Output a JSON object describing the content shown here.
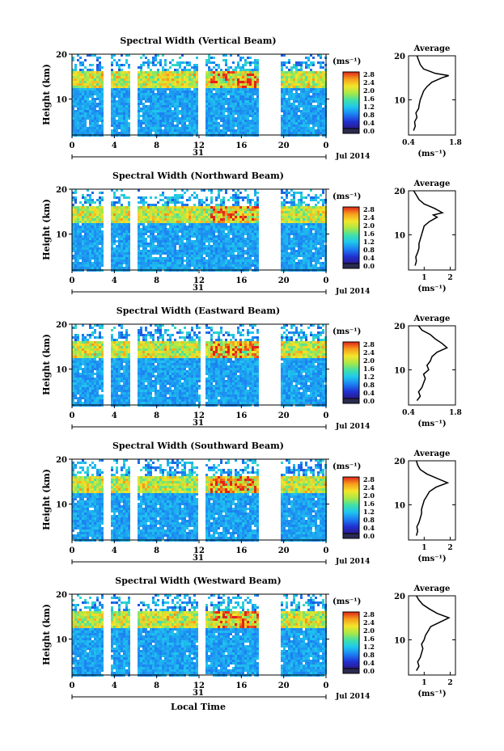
{
  "figure": {
    "xlabel": "Local Time",
    "date_label": "Jul 2014",
    "day_label": "31",
    "ylabel": "Height (km)",
    "colorbar_unit": "(ms⁻¹)",
    "average_title": "Average",
    "average_unit": "(ms⁻¹)"
  },
  "chart_data": [
    {
      "type": "heatmap",
      "title": "Spectral Width (Vertical Beam)",
      "xlabel": "Local Time",
      "ylabel": "Height (km)",
      "x_ticks": [
        "0",
        "4",
        "8",
        "12",
        "16",
        "20",
        "0"
      ],
      "y_ticks": [
        "10",
        "20"
      ],
      "xlim": [
        0,
        24
      ],
      "ylim": [
        2,
        20
      ],
      "data_gaps_hours": [
        [
          2.8,
          3.6
        ],
        [
          5.4,
          6.0
        ],
        [
          11.8,
          12.6
        ],
        [
          17.6,
          19.6
        ]
      ],
      "colorbar": {
        "label": "(ms⁻¹)",
        "ticks": [
          "0.0",
          "0.4",
          "0.8",
          "1.2",
          "1.6",
          "2.0",
          "2.4",
          "2.8"
        ],
        "range": [
          0,
          2.8
        ]
      },
      "average_profile": {
        "title": "Average",
        "xlabel": "(ms⁻¹)",
        "x_ticks": [
          "0.4",
          "1.8"
        ],
        "xlim": [
          0.4,
          1.8
        ],
        "height_km": [
          3,
          4,
          5,
          6,
          7,
          8,
          9,
          10,
          11,
          12,
          13,
          14,
          15,
          15.5,
          16,
          17,
          18,
          19,
          20
        ],
        "value": [
          0.55,
          0.6,
          0.58,
          0.65,
          0.62,
          0.7,
          0.72,
          0.75,
          0.8,
          0.85,
          0.95,
          1.1,
          1.4,
          1.6,
          1.2,
          0.85,
          0.75,
          0.7,
          0.65
        ]
      }
    },
    {
      "type": "heatmap",
      "title": "Spectral Width (Northward Beam)",
      "xlabel": "Local Time",
      "ylabel": "Height (km)",
      "x_ticks": [
        "0",
        "4",
        "8",
        "12",
        "16",
        "20",
        "0"
      ],
      "y_ticks": [
        "10",
        "20"
      ],
      "xlim": [
        0,
        24
      ],
      "ylim": [
        2,
        20
      ],
      "data_gaps_hours": [
        [
          2.8,
          3.6
        ],
        [
          5.4,
          6.0
        ],
        [
          17.6,
          19.6
        ]
      ],
      "colorbar": {
        "label": "(ms⁻¹)",
        "ticks": [
          "0.0",
          "0.4",
          "0.8",
          "1.2",
          "1.6",
          "2.0",
          "2.4",
          "2.8"
        ],
        "range": [
          0,
          2.8
        ]
      },
      "average_profile": {
        "title": "Average",
        "xlabel": "(ms⁻¹)",
        "x_ticks": [
          "1",
          "2"
        ],
        "xlim": [
          0.4,
          2.2
        ],
        "height_km": [
          3,
          4,
          5,
          6,
          7,
          8,
          9,
          10,
          11,
          12,
          13,
          14,
          14.5,
          15,
          16,
          17,
          18,
          19,
          20
        ],
        "value": [
          0.65,
          0.7,
          0.68,
          0.75,
          0.8,
          0.8,
          0.85,
          0.9,
          0.95,
          1.0,
          1.2,
          1.5,
          1.35,
          1.7,
          1.4,
          1.0,
          0.8,
          0.7,
          0.6
        ]
      }
    },
    {
      "type": "heatmap",
      "title": "Spectral Width (Eastward Beam)",
      "xlabel": "Local Time",
      "ylabel": "Height (km)",
      "x_ticks": [
        "0",
        "4",
        "8",
        "12",
        "16",
        "20",
        "0"
      ],
      "y_ticks": [
        "10",
        "20"
      ],
      "xlim": [
        0,
        24
      ],
      "ylim": [
        2,
        20
      ],
      "data_gaps_hours": [
        [
          2.8,
          3.6
        ],
        [
          5.4,
          6.0
        ],
        [
          12.0,
          12.6
        ],
        [
          17.6,
          19.6
        ]
      ],
      "colorbar": {
        "label": "(ms⁻¹)",
        "ticks": [
          "0.0",
          "0.4",
          "0.8",
          "1.2",
          "1.6",
          "2.0",
          "2.4",
          "2.8"
        ],
        "range": [
          0,
          2.8
        ]
      },
      "average_profile": {
        "title": "Average",
        "xlabel": "(ms⁻¹)",
        "x_ticks": [
          "0.4",
          "1.8"
        ],
        "xlim": [
          0.4,
          1.8
        ],
        "height_km": [
          3,
          4,
          5,
          6,
          7,
          8,
          9,
          10,
          11,
          12,
          13,
          14,
          15,
          16,
          17,
          18,
          19,
          20
        ],
        "value": [
          0.65,
          0.75,
          0.7,
          0.8,
          0.85,
          0.9,
          0.85,
          1.0,
          0.95,
          1.05,
          1.1,
          1.25,
          1.55,
          1.4,
          1.2,
          1.05,
          0.8,
          0.7
        ]
      }
    },
    {
      "type": "heatmap",
      "title": "Spectral Width (Southward Beam)",
      "xlabel": "Local Time",
      "ylabel": "Height (km)",
      "x_ticks": [
        "0",
        "4",
        "8",
        "12",
        "16",
        "20",
        "0"
      ],
      "y_ticks": [
        "10",
        "20"
      ],
      "xlim": [
        0,
        24
      ],
      "ylim": [
        2,
        20
      ],
      "data_gaps_hours": [
        [
          2.8,
          3.6
        ],
        [
          5.4,
          6.0
        ],
        [
          11.8,
          12.6
        ],
        [
          17.6,
          19.6
        ]
      ],
      "colorbar": {
        "label": "(ms⁻¹)",
        "ticks": [
          "0.0",
          "0.4",
          "0.8",
          "1.2",
          "1.6",
          "2.0",
          "2.4",
          "2.8"
        ],
        "range": [
          0,
          2.8
        ]
      },
      "average_profile": {
        "title": "Average",
        "xlabel": "(ms⁻¹)",
        "x_ticks": [
          "1",
          "2"
        ],
        "xlim": [
          0.4,
          2.2
        ],
        "height_km": [
          3,
          4,
          5,
          6,
          7,
          8,
          9,
          10,
          11,
          12,
          13,
          14,
          15,
          16,
          17,
          18,
          19,
          20
        ],
        "value": [
          0.7,
          0.75,
          0.72,
          0.8,
          0.85,
          0.9,
          0.9,
          0.95,
          1.0,
          1.1,
          1.2,
          1.45,
          1.9,
          1.5,
          1.1,
          0.85,
          0.75,
          0.7
        ]
      }
    },
    {
      "type": "heatmap",
      "title": "Spectral Width (Westward Beam)",
      "xlabel": "Local Time",
      "ylabel": "Height (km)",
      "x_ticks": [
        "0",
        "4",
        "8",
        "12",
        "16",
        "20",
        "0"
      ],
      "y_ticks": [
        "10",
        "20"
      ],
      "xlim": [
        0,
        24
      ],
      "ylim": [
        2,
        20
      ],
      "data_gaps_hours": [
        [
          2.8,
          3.6
        ],
        [
          5.4,
          6.0
        ],
        [
          11.8,
          12.6
        ],
        [
          17.6,
          19.6
        ]
      ],
      "colorbar": {
        "label": "(ms⁻¹)",
        "ticks": [
          "0.0",
          "0.4",
          "0.8",
          "1.2",
          "1.6",
          "2.0",
          "2.4",
          "2.8"
        ],
        "range": [
          0,
          2.8
        ]
      },
      "average_profile": {
        "title": "Average",
        "xlabel": "(ms⁻¹)",
        "x_ticks": [
          "1",
          "2"
        ],
        "xlim": [
          0.4,
          2.2
        ],
        "height_km": [
          3,
          4,
          5,
          6,
          7,
          8,
          9,
          10,
          11,
          12,
          13,
          14,
          15,
          16,
          17,
          18,
          19,
          20
        ],
        "value": [
          0.7,
          0.8,
          0.75,
          0.85,
          0.9,
          0.95,
          0.9,
          1.0,
          1.05,
          1.15,
          1.25,
          1.6,
          1.95,
          1.5,
          1.2,
          0.95,
          0.8,
          0.7
        ]
      }
    }
  ]
}
